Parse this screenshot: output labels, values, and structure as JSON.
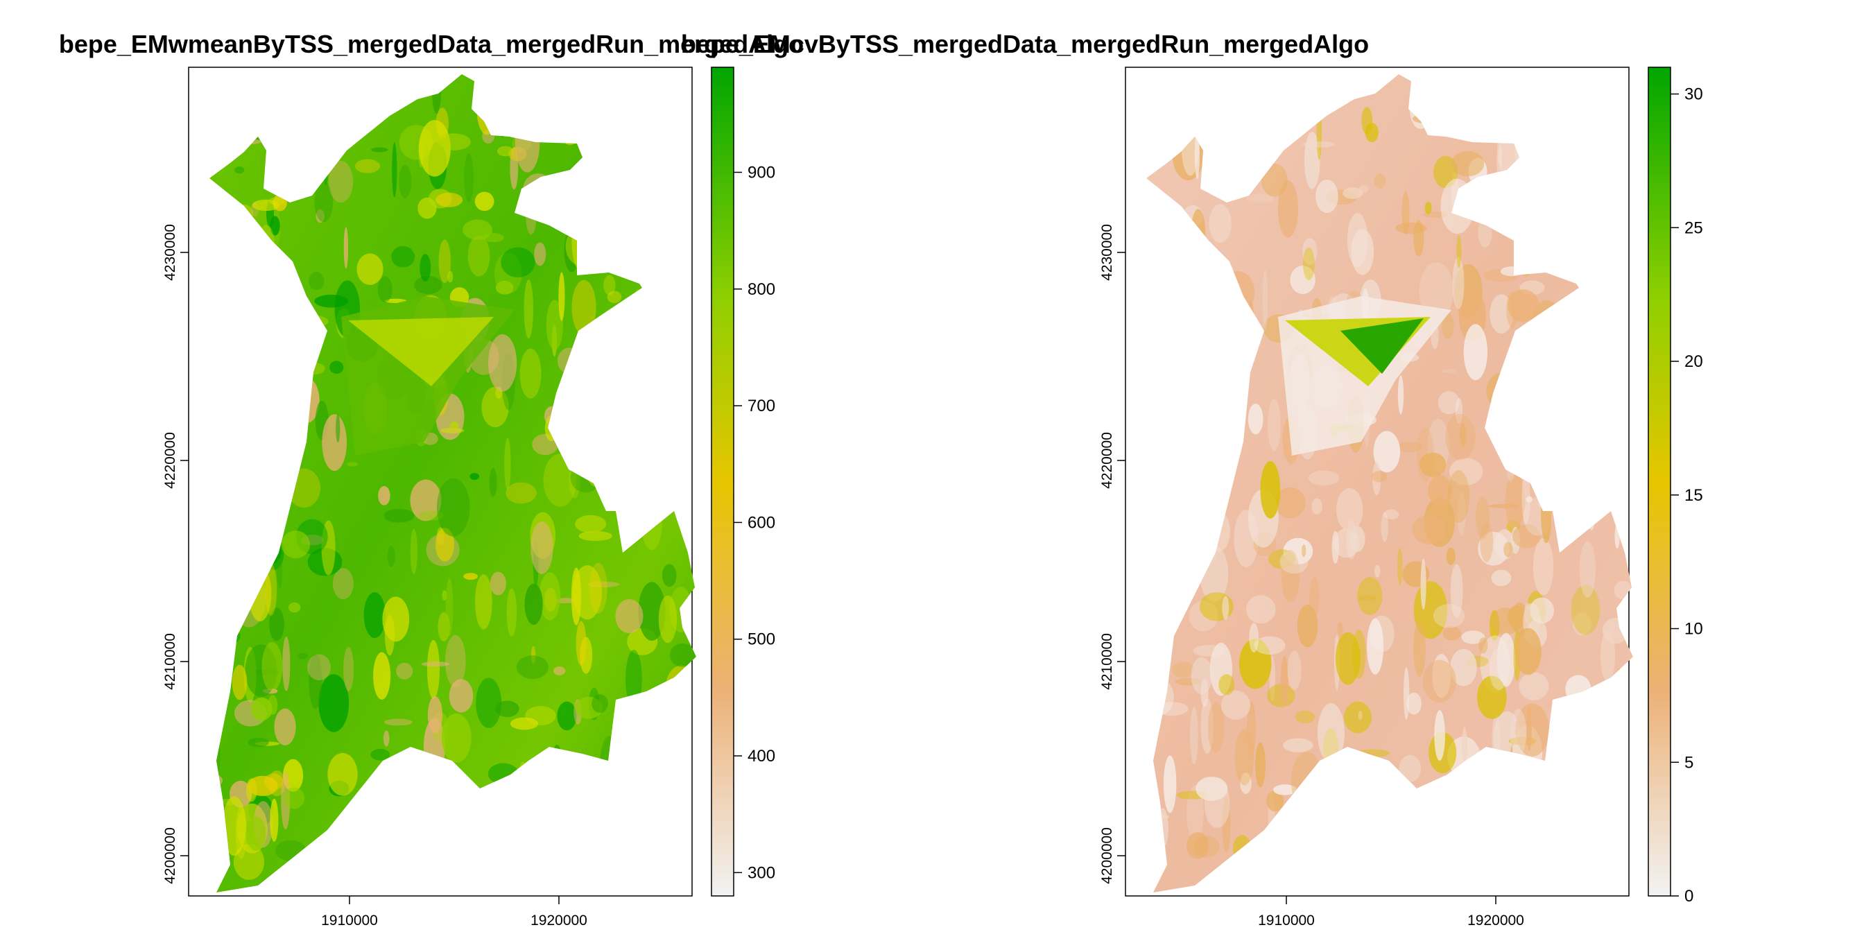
{
  "maps": [
    {
      "title": "bepe_EMwmeanByTSS_mergedData_mergedRun_mergedAlgo",
      "x_ticks": [
        "1910000",
        "1920000"
      ],
      "y_ticks": [
        "4200000",
        "4210000",
        "4220000",
        "4230000"
      ],
      "legend_ticks": [
        "300",
        "400",
        "500",
        "600",
        "700",
        "800",
        "900"
      ],
      "legend_range": [
        280,
        990
      ],
      "legend_tick_values": [
        300,
        400,
        500,
        600,
        700,
        800,
        900
      ],
      "palette": [
        "#f2f2f2",
        "#ecb176",
        "#e6e600",
        "#63c600",
        "#00a600"
      ],
      "fill": "green"
    },
    {
      "title": "bepe_EMcvByTSS_mergedData_mergedRun_mergedAlgo",
      "x_ticks": [
        "1910000",
        "1920000"
      ],
      "y_ticks": [
        "4200000",
        "4210000",
        "4220000",
        "4230000"
      ],
      "legend_ticks": [
        "0",
        "5",
        "10",
        "15",
        "20",
        "25",
        "30"
      ],
      "legend_range": [
        0,
        31
      ],
      "legend_tick_values": [
        0,
        5,
        10,
        15,
        20,
        25,
        30
      ],
      "palette": [
        "#f2f2f2",
        "#ecb176",
        "#e6e600",
        "#63c600",
        "#00a600"
      ],
      "fill": "salmon"
    }
  ]
}
